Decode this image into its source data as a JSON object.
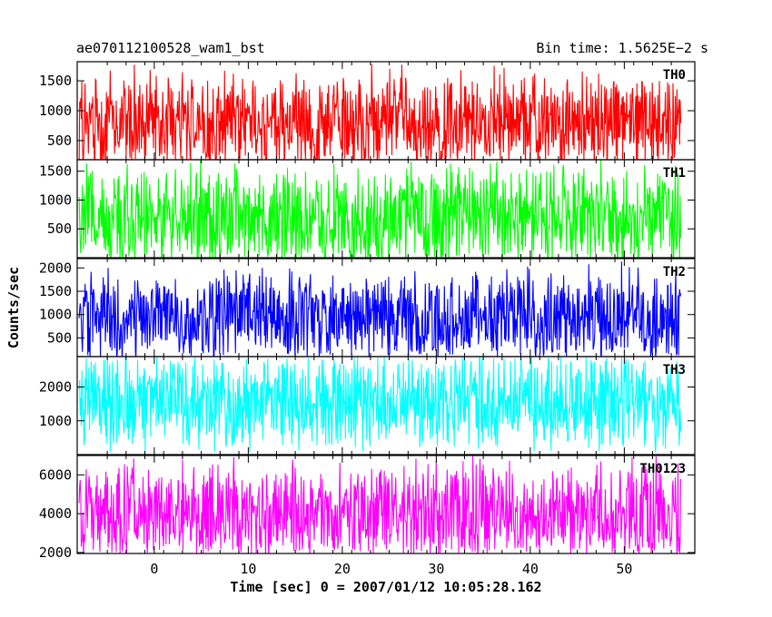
{
  "header": {
    "title": "ae070112100528_wam1_bst",
    "bin_time": "Bin time: 1.5625E−2 s"
  },
  "axes": {
    "xlabel": "Time [sec] 0 = 2007/01/12 10:05:28.162",
    "ylabel": "Counts/sec"
  },
  "chart_data": [
    {
      "type": "line",
      "title": "TH0",
      "color": "#ff0000",
      "xlim": [
        -8.2,
        57.5
      ],
      "ylim": [
        180,
        1820
      ],
      "yticks": [
        500,
        1000,
        1500
      ],
      "series": [
        {
          "name": "TH0",
          "x_range": [
            -8,
            56
          ],
          "typical_range": [
            200,
            1400
          ],
          "peak": 1800,
          "mean": 800
        }
      ]
    },
    {
      "type": "line",
      "title": "TH1",
      "color": "#00ff00",
      "xlim": [
        -8.2,
        57.5
      ],
      "ylim": [
        0,
        1700
      ],
      "yticks": [
        500,
        1000,
        1500
      ],
      "series": [
        {
          "name": "TH1",
          "x_range": [
            -8,
            56
          ],
          "typical_range": [
            100,
            1400
          ],
          "peak": 1700,
          "mean": 700
        }
      ]
    },
    {
      "type": "line",
      "title": "TH2",
      "color": "#0000ff",
      "xlim": [
        -8.2,
        57.5
      ],
      "ylim": [
        100,
        2200
      ],
      "yticks": [
        500,
        1000,
        1500,
        2000
      ],
      "series": [
        {
          "name": "TH2",
          "x_range": [
            -8,
            56
          ],
          "typical_range": [
            300,
            1700
          ],
          "peak": 2150,
          "mean": 950
        }
      ]
    },
    {
      "type": "line",
      "title": "TH3",
      "color": "#00ffff",
      "xlim": [
        -8.2,
        57.5
      ],
      "ylim": [
        0,
        2900
      ],
      "yticks": [
        1000,
        2000
      ],
      "series": [
        {
          "name": "TH3",
          "x_range": [
            -8,
            56
          ],
          "typical_range": [
            500,
            2600
          ],
          "peak": 2900,
          "mean": 1600
        }
      ]
    },
    {
      "type": "line",
      "title": "TH0123",
      "color": "#ff00ff",
      "xlim": [
        -8.2,
        57.5
      ],
      "ylim": [
        1950,
        7000
      ],
      "yticks": [
        2000,
        4000,
        6000
      ],
      "series": [
        {
          "name": "TH0123",
          "x_range": [
            -8,
            56
          ],
          "typical_range": [
            2300,
            5900
          ],
          "peak": 7000,
          "mean": 4000
        }
      ]
    }
  ],
  "xaxis": {
    "ticks": [
      0,
      10,
      20,
      30,
      40,
      50
    ]
  }
}
